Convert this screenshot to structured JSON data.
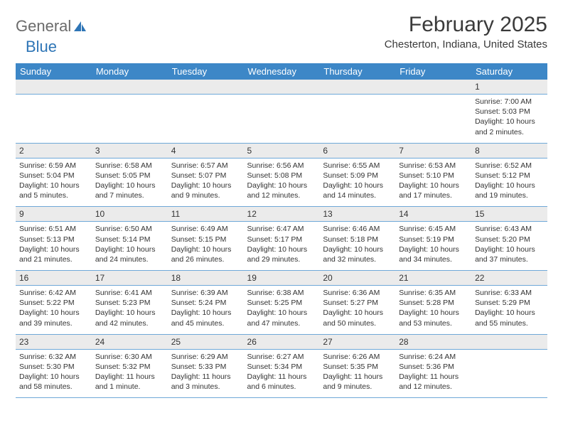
{
  "logo": {
    "text1": "General",
    "text2": "Blue"
  },
  "title": "February 2025",
  "location": "Chesterton, Indiana, United States",
  "colors": {
    "header_bg": "#3d87c7",
    "header_fg": "#ffffff",
    "daynum_bg": "#ebebeb",
    "rule": "#6fa8d8",
    "logo_gray": "#6b6b6b",
    "logo_blue": "#2e75b6"
  },
  "day_headers": [
    "Sunday",
    "Monday",
    "Tuesday",
    "Wednesday",
    "Thursday",
    "Friday",
    "Saturday"
  ],
  "weeks": [
    [
      null,
      null,
      null,
      null,
      null,
      null,
      {
        "n": "1",
        "sr": "Sunrise: 7:00 AM",
        "ss": "Sunset: 5:03 PM",
        "dl": "Daylight: 10 hours and 2 minutes."
      }
    ],
    [
      {
        "n": "2",
        "sr": "Sunrise: 6:59 AM",
        "ss": "Sunset: 5:04 PM",
        "dl": "Daylight: 10 hours and 5 minutes."
      },
      {
        "n": "3",
        "sr": "Sunrise: 6:58 AM",
        "ss": "Sunset: 5:05 PM",
        "dl": "Daylight: 10 hours and 7 minutes."
      },
      {
        "n": "4",
        "sr": "Sunrise: 6:57 AM",
        "ss": "Sunset: 5:07 PM",
        "dl": "Daylight: 10 hours and 9 minutes."
      },
      {
        "n": "5",
        "sr": "Sunrise: 6:56 AM",
        "ss": "Sunset: 5:08 PM",
        "dl": "Daylight: 10 hours and 12 minutes."
      },
      {
        "n": "6",
        "sr": "Sunrise: 6:55 AM",
        "ss": "Sunset: 5:09 PM",
        "dl": "Daylight: 10 hours and 14 minutes."
      },
      {
        "n": "7",
        "sr": "Sunrise: 6:53 AM",
        "ss": "Sunset: 5:10 PM",
        "dl": "Daylight: 10 hours and 17 minutes."
      },
      {
        "n": "8",
        "sr": "Sunrise: 6:52 AM",
        "ss": "Sunset: 5:12 PM",
        "dl": "Daylight: 10 hours and 19 minutes."
      }
    ],
    [
      {
        "n": "9",
        "sr": "Sunrise: 6:51 AM",
        "ss": "Sunset: 5:13 PM",
        "dl": "Daylight: 10 hours and 21 minutes."
      },
      {
        "n": "10",
        "sr": "Sunrise: 6:50 AM",
        "ss": "Sunset: 5:14 PM",
        "dl": "Daylight: 10 hours and 24 minutes."
      },
      {
        "n": "11",
        "sr": "Sunrise: 6:49 AM",
        "ss": "Sunset: 5:15 PM",
        "dl": "Daylight: 10 hours and 26 minutes."
      },
      {
        "n": "12",
        "sr": "Sunrise: 6:47 AM",
        "ss": "Sunset: 5:17 PM",
        "dl": "Daylight: 10 hours and 29 minutes."
      },
      {
        "n": "13",
        "sr": "Sunrise: 6:46 AM",
        "ss": "Sunset: 5:18 PM",
        "dl": "Daylight: 10 hours and 32 minutes."
      },
      {
        "n": "14",
        "sr": "Sunrise: 6:45 AM",
        "ss": "Sunset: 5:19 PM",
        "dl": "Daylight: 10 hours and 34 minutes."
      },
      {
        "n": "15",
        "sr": "Sunrise: 6:43 AM",
        "ss": "Sunset: 5:20 PM",
        "dl": "Daylight: 10 hours and 37 minutes."
      }
    ],
    [
      {
        "n": "16",
        "sr": "Sunrise: 6:42 AM",
        "ss": "Sunset: 5:22 PM",
        "dl": "Daylight: 10 hours and 39 minutes."
      },
      {
        "n": "17",
        "sr": "Sunrise: 6:41 AM",
        "ss": "Sunset: 5:23 PM",
        "dl": "Daylight: 10 hours and 42 minutes."
      },
      {
        "n": "18",
        "sr": "Sunrise: 6:39 AM",
        "ss": "Sunset: 5:24 PM",
        "dl": "Daylight: 10 hours and 45 minutes."
      },
      {
        "n": "19",
        "sr": "Sunrise: 6:38 AM",
        "ss": "Sunset: 5:25 PM",
        "dl": "Daylight: 10 hours and 47 minutes."
      },
      {
        "n": "20",
        "sr": "Sunrise: 6:36 AM",
        "ss": "Sunset: 5:27 PM",
        "dl": "Daylight: 10 hours and 50 minutes."
      },
      {
        "n": "21",
        "sr": "Sunrise: 6:35 AM",
        "ss": "Sunset: 5:28 PM",
        "dl": "Daylight: 10 hours and 53 minutes."
      },
      {
        "n": "22",
        "sr": "Sunrise: 6:33 AM",
        "ss": "Sunset: 5:29 PM",
        "dl": "Daylight: 10 hours and 55 minutes."
      }
    ],
    [
      {
        "n": "23",
        "sr": "Sunrise: 6:32 AM",
        "ss": "Sunset: 5:30 PM",
        "dl": "Daylight: 10 hours and 58 minutes."
      },
      {
        "n": "24",
        "sr": "Sunrise: 6:30 AM",
        "ss": "Sunset: 5:32 PM",
        "dl": "Daylight: 11 hours and 1 minute."
      },
      {
        "n": "25",
        "sr": "Sunrise: 6:29 AM",
        "ss": "Sunset: 5:33 PM",
        "dl": "Daylight: 11 hours and 3 minutes."
      },
      {
        "n": "26",
        "sr": "Sunrise: 6:27 AM",
        "ss": "Sunset: 5:34 PM",
        "dl": "Daylight: 11 hours and 6 minutes."
      },
      {
        "n": "27",
        "sr": "Sunrise: 6:26 AM",
        "ss": "Sunset: 5:35 PM",
        "dl": "Daylight: 11 hours and 9 minutes."
      },
      {
        "n": "28",
        "sr": "Sunrise: 6:24 AM",
        "ss": "Sunset: 5:36 PM",
        "dl": "Daylight: 11 hours and 12 minutes."
      },
      null
    ]
  ]
}
